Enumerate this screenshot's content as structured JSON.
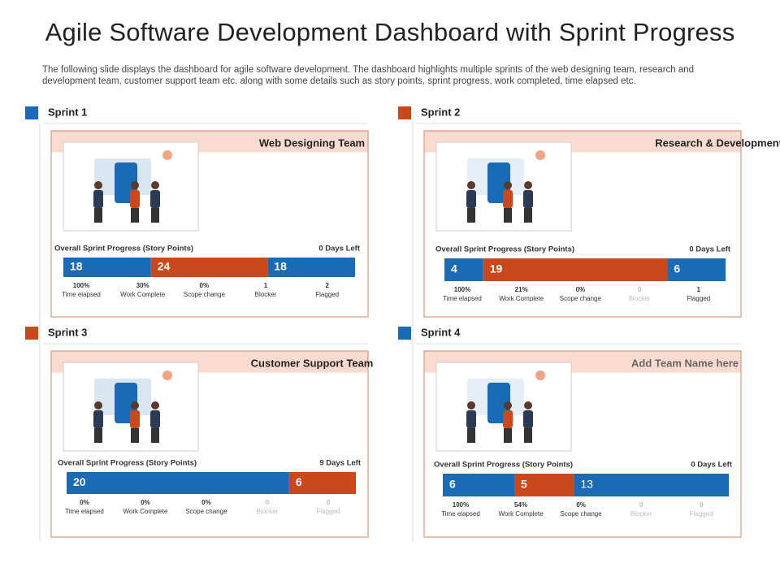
{
  "header": {
    "title": "Agile Software Development Dashboard with Sprint Progress",
    "description": "The following slide displays the dashboard for agile software development. The dashboard highlights multiple sprints of the web designing team, research and development team, customer support team etc. along with some details such as story points, sprint progress, work completed, time elapsed etc."
  },
  "sprints": [
    {
      "label": "Sprint 1",
      "marker_color": "#1a6ab5",
      "team": "Web Designing Team",
      "progress_label": "Overall Sprint Progress (Story Points)",
      "days_left": "0 Days Left",
      "segments": [
        {
          "value": 18,
          "color": "#1a6ab5"
        },
        {
          "value": 24,
          "color": "#c9491c"
        },
        {
          "value": 18,
          "color": "#1a6ab5"
        }
      ],
      "stats": [
        {
          "value": "100%",
          "label": "Time elapsed",
          "muted": false
        },
        {
          "value": "30%",
          "label": "Work Complete",
          "muted": false
        },
        {
          "value": "0%",
          "label": "Scope change",
          "muted": false
        },
        {
          "value": "1",
          "label": "Blocker",
          "muted": false
        },
        {
          "value": "2",
          "label": "Flagged",
          "muted": false
        }
      ]
    },
    {
      "label": "Sprint 2",
      "marker_color": "#c9491c",
      "team": "Research & Development Team",
      "progress_label": "Overall Sprint Progress (Story Points)",
      "days_left": "0 Days Left",
      "segments": [
        {
          "value": 4,
          "color": "#1a6ab5"
        },
        {
          "value": 19,
          "color": "#c9491c"
        },
        {
          "value": 6,
          "color": "#1a6ab5"
        }
      ],
      "stats": [
        {
          "value": "100%",
          "label": "Time elapsed",
          "muted": false
        },
        {
          "value": "21%",
          "label": "Work Complete",
          "muted": false
        },
        {
          "value": "0%",
          "label": "Scope change",
          "muted": false
        },
        {
          "value": "0",
          "label": "Blocker",
          "muted": true
        },
        {
          "value": "1",
          "label": "Flagged",
          "muted": false
        }
      ]
    },
    {
      "label": "Sprint 3",
      "marker_color": "#c9491c",
      "team": "Customer  Support Team",
      "progress_label": "Overall Sprint Progress (Story Points)",
      "days_left": "9 Days Left",
      "segments": [
        {
          "value": 20,
          "color": "#1a6ab5"
        },
        {
          "value": 6,
          "color": "#c9491c"
        }
      ],
      "stats": [
        {
          "value": "0%",
          "label": "Time elapsed",
          "muted": false
        },
        {
          "value": "0%",
          "label": "Work Complete",
          "muted": false
        },
        {
          "value": "0%",
          "label": "Scope change",
          "muted": false
        },
        {
          "value": "0",
          "label": "Blocker",
          "muted": true
        },
        {
          "value": "0",
          "label": "Flagged",
          "muted": true
        }
      ]
    },
    {
      "label": "Sprint 4",
      "marker_color": "#1a6ab5",
      "team": "Add Team Name here",
      "progress_label": "Overall Sprint Progress (Story Points)",
      "days_left": "0 Days Left",
      "segments": [
        {
          "value": 6,
          "color": "#1a6ab5"
        },
        {
          "value": 5,
          "color": "#c9491c"
        },
        {
          "value": 13,
          "color": "#1a6ab5"
        }
      ],
      "stats": [
        {
          "value": "100%",
          "label": "Time elapsed",
          "muted": false
        },
        {
          "value": "54%",
          "label": "Work Complete",
          "muted": false
        },
        {
          "value": "0%",
          "label": "Scope change",
          "muted": false
        },
        {
          "value": "0",
          "label": "Blocker",
          "muted": true
        },
        {
          "value": "0",
          "label": "Flagged",
          "muted": true
        }
      ]
    }
  ]
}
